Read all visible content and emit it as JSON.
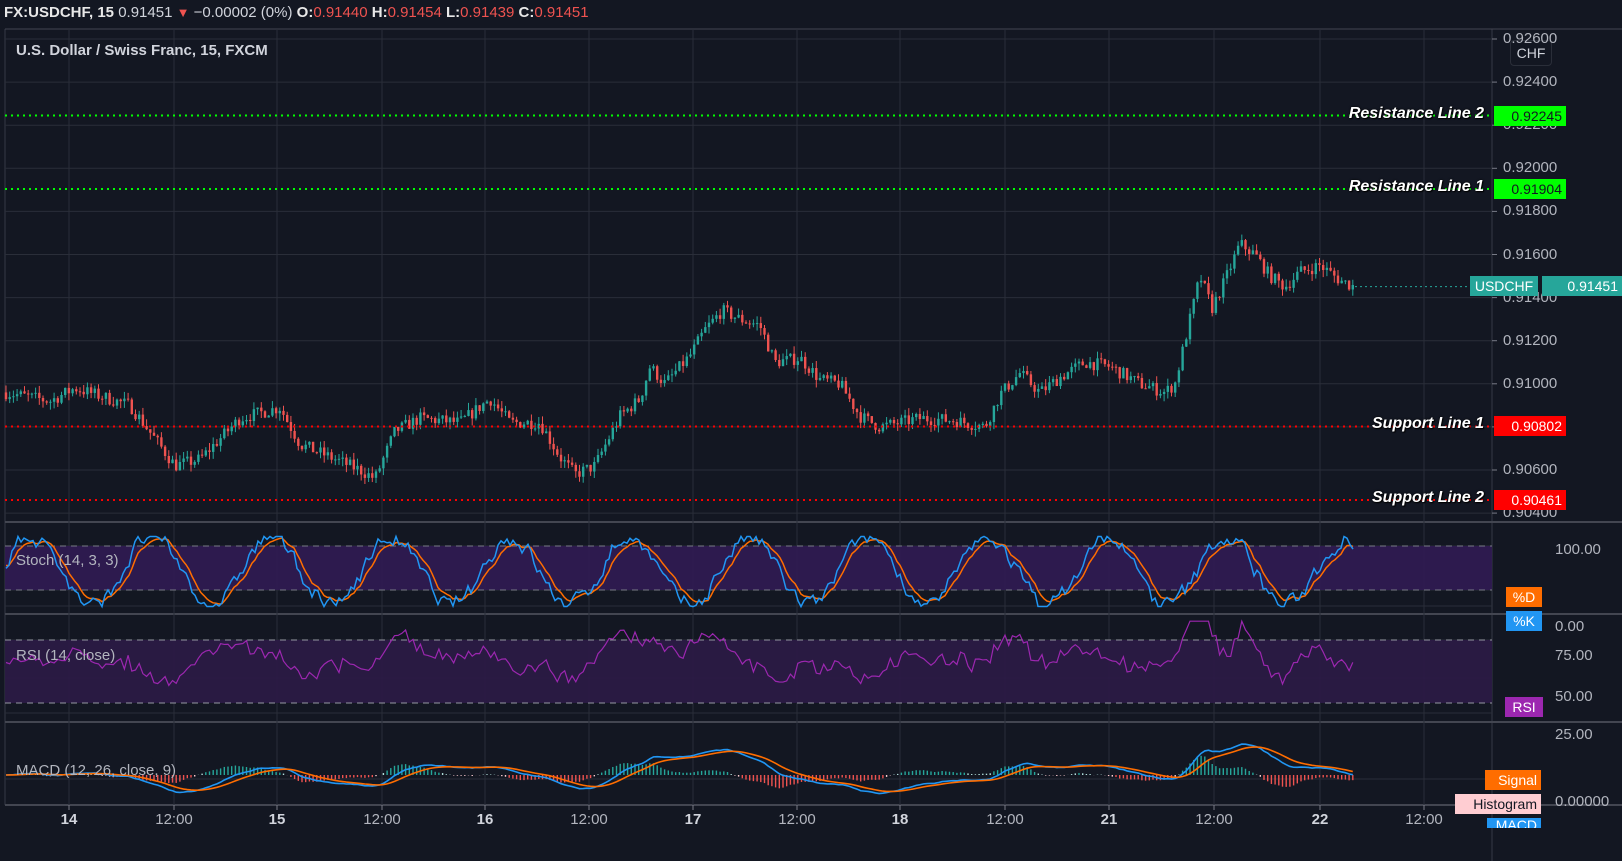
{
  "header": {
    "symbol": "FX:USDCHF, 15",
    "last": "0.91451",
    "change_arrow": "▼",
    "change": "−0.00002 (0%)",
    "open_label": "O:",
    "open": "0.91440",
    "high_label": "H:",
    "high": "0.91454",
    "low_label": "L:",
    "low": "0.91439",
    "close_label": "C:",
    "close": "0.91451"
  },
  "main_pane": {
    "title": "U.S. Dollar / Swiss Franc, 15, FXCM",
    "currency_button": "CHF",
    "price_ticks": [
      "0.92600",
      "0.92400",
      "0.92200",
      "0.92000",
      "0.91800",
      "0.91600",
      "0.91400",
      "0.91200",
      "0.91000",
      "0.90800",
      "0.90600",
      "0.90400"
    ],
    "current_price_tag": {
      "label": "USDCHF",
      "value": "0.91451",
      "color": "#26a69a"
    },
    "levels": [
      {
        "name": "Resistance Line 2",
        "value": "0.92245",
        "color": "#00ff00"
      },
      {
        "name": "Resistance Line 1",
        "value": "0.91904",
        "color": "#00ff00"
      },
      {
        "name": "Support Line 1",
        "value": "0.90802",
        "color": "#ff0000"
      },
      {
        "name": "Support Line 2",
        "value": "0.90461",
        "color": "#ff0000"
      }
    ]
  },
  "stoch_pane": {
    "title": "Stoch (14, 3, 3)",
    "ticks": [
      "100.00",
      "0.00"
    ],
    "legend": [
      {
        "label": "%D",
        "color": "#ff6d00"
      },
      {
        "label": "%K",
        "color": "#2196f3"
      }
    ]
  },
  "rsi_pane": {
    "title": "RSI (14, close)",
    "ticks": [
      "75.00",
      "50.00",
      "25.00"
    ],
    "legend": [
      {
        "label": "RSI",
        "color": "#9c27b0"
      }
    ]
  },
  "macd_pane": {
    "title": "MACD (12, 26, close, 9)",
    "ticks": [
      "0.00000"
    ],
    "legend": [
      {
        "label": "Signal",
        "color": "#ff6d00"
      },
      {
        "label": "Histogram",
        "color": "#ffcdd2"
      },
      {
        "label": "MACD",
        "color": "#2196f3"
      }
    ]
  },
  "x_axis": {
    "labels": [
      "14",
      "12:00",
      "15",
      "12:00",
      "16",
      "12:00",
      "17",
      "12:00",
      "18",
      "12:00",
      "21",
      "12:00",
      "22",
      "12:00"
    ]
  },
  "colors": {
    "background": "#131722",
    "grid": "#2a2e39",
    "up": "#26a69a",
    "down": "#ef5350",
    "stoch_band": "#311b53",
    "rsi_band": "#2a1a45"
  },
  "chart_data": {
    "type": "candlestick",
    "title": "U.S. Dollar / Swiss Franc, 15, FXCM",
    "symbol": "FX:USDCHF",
    "interval": "15",
    "x_labels": [
      "14",
      "12:00",
      "15",
      "12:00",
      "16",
      "12:00",
      "17",
      "12:00",
      "18",
      "12:00",
      "21",
      "12:00",
      "22",
      "12:00"
    ],
    "ylim": [
      0.9038,
      0.9265
    ],
    "approx_close_path": {
      "x": [
        "14 00:00",
        "14 12:00",
        "15 00:00",
        "15 12:00",
        "16 00:00",
        "16 12:00",
        "17 00:00",
        "17 12:00",
        "18 00:00",
        "18 12:00",
        "21 00:00",
        "21 12:00",
        "22 00:00",
        "22 03:00"
      ],
      "close": [
        0.9095,
        0.9062,
        0.9088,
        0.9058,
        0.909,
        0.906,
        0.912,
        0.9118,
        0.908,
        0.9083,
        0.911,
        0.915,
        0.915,
        0.91451
      ]
    },
    "last": {
      "open": 0.9144,
      "high": 0.91454,
      "low": 0.91439,
      "close": 0.91451,
      "change": -2e-05
    },
    "horizontal_lines": [
      {
        "label": "Resistance Line 2",
        "value": 0.92245
      },
      {
        "label": "Resistance Line 1",
        "value": 0.91904
      },
      {
        "label": "Support Line 1",
        "value": 0.90802
      },
      {
        "label": "Support Line 2",
        "value": 0.90461
      }
    ],
    "indicators": [
      {
        "name": "Stoch (14, 3, 3)",
        "ylim": [
          0,
          100
        ],
        "bands": [
          80,
          20
        ]
      },
      {
        "name": "RSI (14, close)",
        "ylim": [
          20,
          80
        ],
        "bands": [
          70,
          30
        ]
      },
      {
        "name": "MACD (12, 26, close, 9)",
        "zero": 0.0
      }
    ],
    "grid": true
  }
}
